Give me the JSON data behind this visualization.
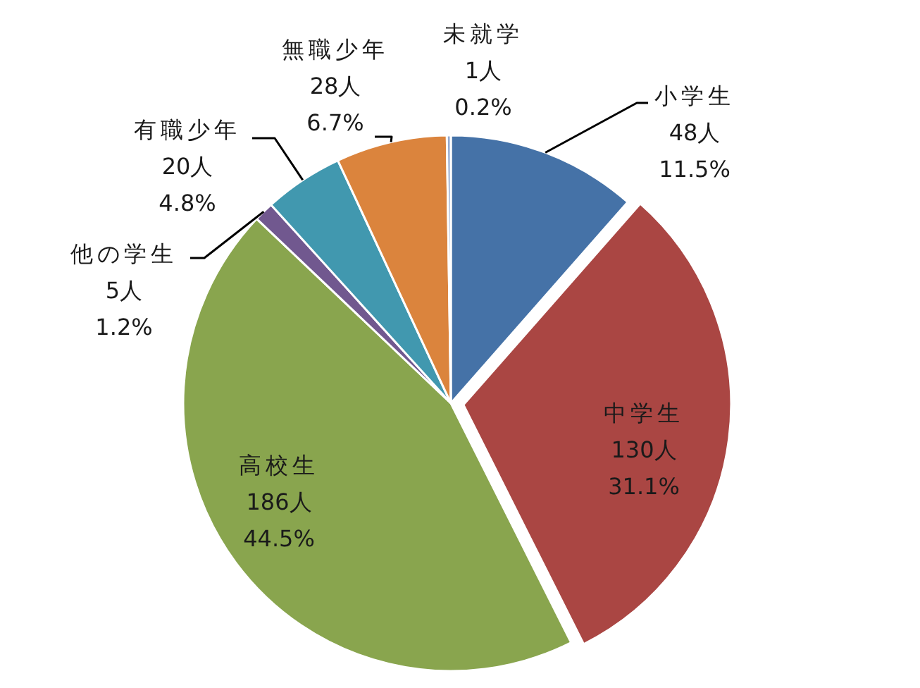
{
  "chart_data": {
    "type": "pie",
    "categories": [
      "小学生",
      "中学生",
      "高校生",
      "他の学生",
      "有職少年",
      "無職少年",
      "未就学"
    ],
    "values": [
      48,
      130,
      186,
      5,
      20,
      28,
      1
    ],
    "colors": [
      "#4572a7",
      "#aa4643",
      "#89a54e",
      "#71588f",
      "#4198af",
      "#db843d",
      "#93a9cf"
    ],
    "value_labels": [
      "48人\n11.5%",
      "130人\n31.1%",
      "186人\n44.5%",
      "5人\n1.2%",
      "20人\n4.8%",
      "28人\n6.7%",
      "1人\n0.2%"
    ]
  }
}
